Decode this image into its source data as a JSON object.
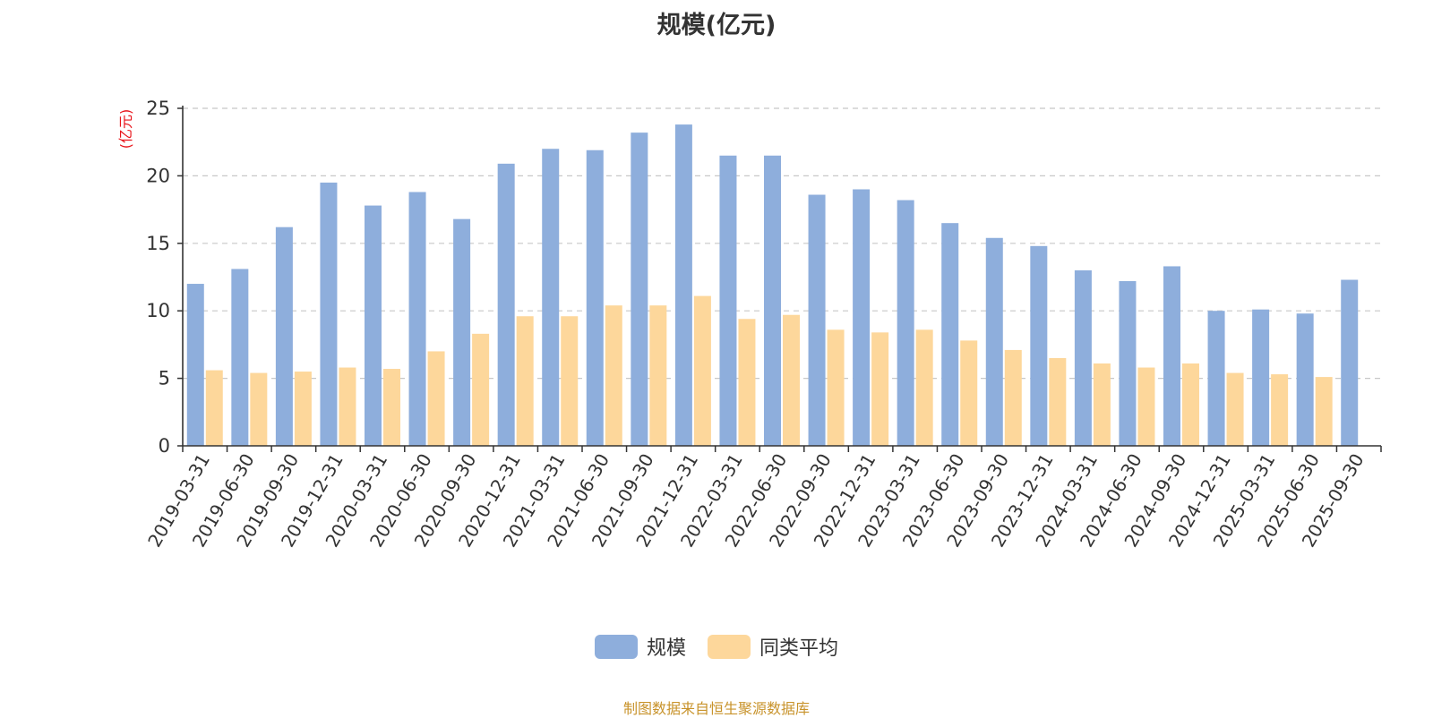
{
  "chart_data": {
    "type": "bar",
    "title": "规模(亿元)",
    "ylabel": "(亿元)",
    "ylim": [
      0,
      25
    ],
    "yticks": [
      0,
      5,
      10,
      15,
      20,
      25
    ],
    "grid": true,
    "legend_position": "bottom",
    "categories": [
      "2019-03-31",
      "2019-06-30",
      "2019-09-30",
      "2019-12-31",
      "2020-03-31",
      "2020-06-30",
      "2020-09-30",
      "2020-12-31",
      "2021-03-31",
      "2021-06-30",
      "2021-09-30",
      "2021-12-31",
      "2022-03-31",
      "2022-06-30",
      "2022-09-30",
      "2022-12-31",
      "2023-03-31",
      "2023-06-30",
      "2023-09-30",
      "2023-12-31",
      "2024-03-31",
      "2024-06-30",
      "2024-09-30",
      "2024-12-31",
      "2025-03-31",
      "2025-06-30",
      "2025-09-30"
    ],
    "series": [
      {
        "name": "规模",
        "color": "#8eaedc",
        "values": [
          12.0,
          13.1,
          16.2,
          19.5,
          17.8,
          18.8,
          16.8,
          20.9,
          22.0,
          21.9,
          23.2,
          23.8,
          21.5,
          21.5,
          18.6,
          19.0,
          18.2,
          16.5,
          15.4,
          14.8,
          13.0,
          12.2,
          13.3,
          10.0,
          10.1,
          9.8,
          12.3
        ]
      },
      {
        "name": "同类平均",
        "color": "#fdd79b",
        "values": [
          5.6,
          5.4,
          5.5,
          5.8,
          5.7,
          7.0,
          8.3,
          9.6,
          9.6,
          10.4,
          10.4,
          11.1,
          9.4,
          9.7,
          8.6,
          8.4,
          8.6,
          7.8,
          7.1,
          6.5,
          6.1,
          5.8,
          6.1,
          5.4,
          5.3,
          5.1,
          null
        ]
      }
    ]
  },
  "source_note": "制图数据来自恒生聚源数据库"
}
